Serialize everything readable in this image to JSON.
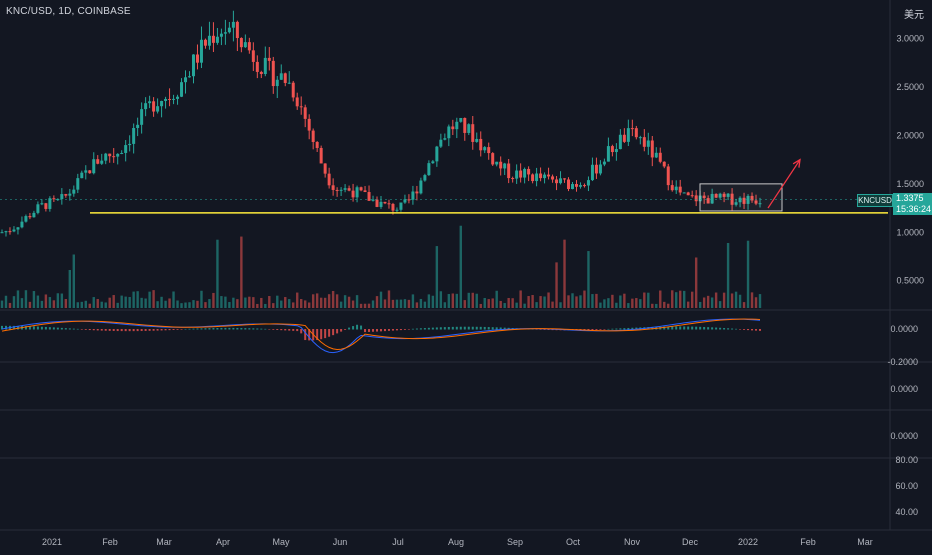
{
  "header": {
    "symbol_title": "KNC/USD, 1D, COINBASE",
    "currency": "美元"
  },
  "last_price": {
    "symbol_tag": "KNCUSD",
    "price": "1.3375",
    "countdown": "15:36:24"
  },
  "colors": {
    "background": "#131722",
    "up": "#26a69a",
    "down": "#ef5350",
    "support_line": "#ffeb3b",
    "macd_line": "#2962ff",
    "signal_line": "#ff6d00",
    "annotation_arrow": "#f23645",
    "grid": "#1e222d",
    "axis_text": "#b2b5be"
  },
  "chart_data": [
    {
      "type": "candlestick",
      "title": "KNC/USD, 1D, COINBASE",
      "x_ticks": [
        "2021",
        "Feb",
        "Mar",
        "Apr",
        "May",
        "Jun",
        "Jul",
        "Aug",
        "Sep",
        "Oct",
        "Nov",
        "Dec",
        "2022",
        "Feb",
        "Mar"
      ],
      "y_ticks": [
        "3.0000",
        "2.5000",
        "2.0000",
        "1.5000",
        "1.0000",
        "0.5000"
      ],
      "ylim": [
        0.3,
        3.4
      ],
      "monthly_closes": {
        "months": [
          "Jan",
          "Feb",
          "Mar",
          "Apr",
          "May",
          "Jun",
          "Jul",
          "Aug",
          "Sep",
          "Oct",
          "Nov",
          "Dec",
          "Jan"
        ],
        "values": [
          1.3,
          1.8,
          2.4,
          3.1,
          2.6,
          1.45,
          1.25,
          2.1,
          1.6,
          1.5,
          2.0,
          1.35,
          1.34
        ]
      },
      "support_level": 1.2,
      "consolidation_box": {
        "from": "Dec",
        "to": "Jan",
        "low": 1.22,
        "high": 1.5
      },
      "projection_arrow": {
        "from_price": 1.25,
        "to_price": 1.75
      },
      "grid": false
    },
    {
      "type": "bar",
      "title": "Volume",
      "note_series": "volume"
    },
    {
      "type": "line",
      "title": "MACD",
      "y_ticks": [
        "0.0000",
        "-0.2000"
      ],
      "series": []
    },
    {
      "type": "line",
      "title": "",
      "y_ticks": [
        "0.0000"
      ]
    },
    {
      "type": "line",
      "title": "",
      "y_ticks": [
        "0.0000"
      ]
    },
    {
      "type": "line",
      "title": "",
      "y_ticks": [
        "80.00",
        "60.00",
        "40.00"
      ]
    }
  ]
}
